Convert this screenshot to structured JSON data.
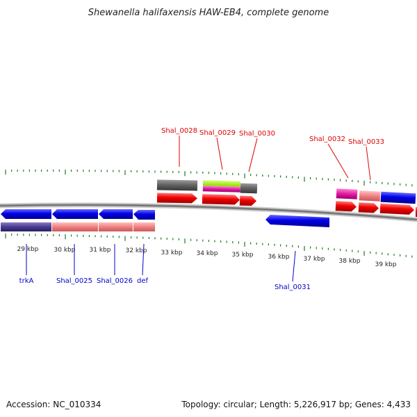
{
  "title": "Shewanella halifaxensis HAW-EB4, complete genome",
  "footer": {
    "accession": "Accession: NC_010334",
    "summary": "Topology: circular; Length: 5,226,917 bp; Genes: 4,433"
  },
  "colors": {
    "label_top": "#dd0000",
    "label_bottom": "#0000cc",
    "tick": "#1a7a1a",
    "backbone": "#888888"
  },
  "scale_labels": [
    "29 kbp",
    "30 kbp",
    "31 kbp",
    "32 kbp",
    "33 kbp",
    "34 kbp",
    "35 kbp",
    "36 kbp",
    "37 kbp",
    "38 kbp",
    "39 kbp"
  ],
  "gene_labels_top": [
    "Shal_0028",
    "Shal_0029",
    "Shal_0030",
    "Shal_0032",
    "Shal_0033"
  ],
  "gene_labels_bottom": [
    "trkA",
    "Shal_0025",
    "Shal_0026",
    "def",
    "Shal_0031"
  ]
}
